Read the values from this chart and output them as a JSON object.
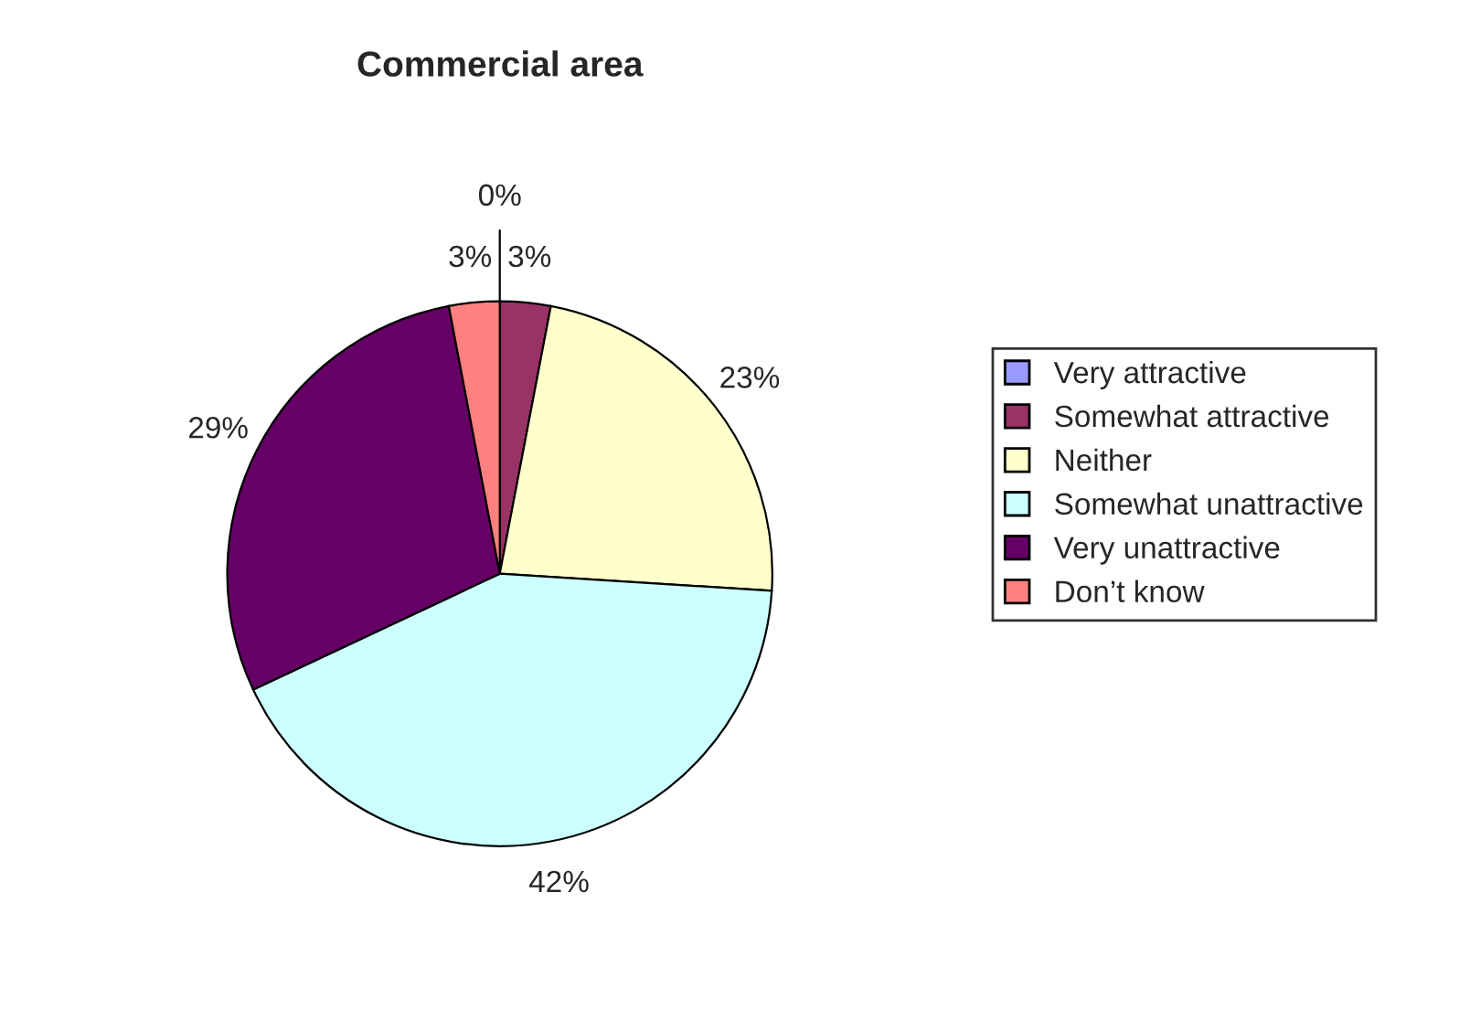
{
  "chart_data": {
    "type": "pie",
    "title": "Commercial area",
    "categories": [
      "Very attractive",
      "Somewhat attractive",
      "Neither",
      "Somewhat unattractive",
      "Very unattractive",
      "Don’t know"
    ],
    "values": [
      0,
      3,
      23,
      42,
      29,
      3
    ],
    "value_labels": [
      "0%",
      "3%",
      "23%",
      "42%",
      "29%",
      "3%"
    ],
    "colors": [
      "#9999ff",
      "#993366",
      "#ffffcc",
      "#ccffff",
      "#660066",
      "#ff8080"
    ],
    "legend": "right"
  }
}
